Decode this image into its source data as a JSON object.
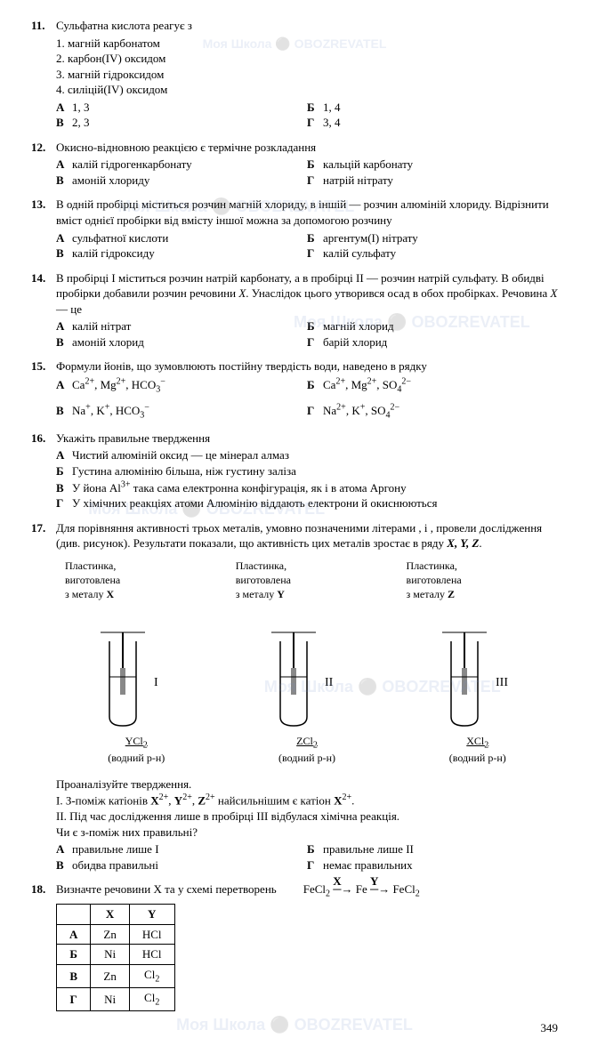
{
  "page_number": "349",
  "watermark_text": "Моя Школа ⚫ OBOZREVATEL",
  "questions": [
    {
      "num": "11.",
      "stem": "Сульфатна кислота реагує з",
      "list": [
        "1. магній карбонатом",
        "2. карбон(IV) оксидом",
        "3. магній гідроксидом",
        "4. силіцій(IV) оксидом"
      ],
      "answers_left": [
        [
          "А",
          "1, 3"
        ],
        [
          "В",
          "2, 3"
        ]
      ],
      "answers_right": [
        [
          "Б",
          "1, 4"
        ],
        [
          "Г",
          "3, 4"
        ]
      ]
    },
    {
      "num": "12.",
      "stem": "Окисно-відновною реакцією є термічне розкладання",
      "answers_left": [
        [
          "А",
          "калій гідрогенкарбонату"
        ],
        [
          "В",
          "амоній хлориду"
        ]
      ],
      "answers_right": [
        [
          "Б",
          "кальцій карбонату"
        ],
        [
          "Г",
          "натрій нітрату"
        ]
      ]
    },
    {
      "num": "13.",
      "stem": "В одній пробірці міститься розчин магній хлориду, в іншій — розчин алюміній хлориду. Відрізнити вміст однієї пробірки від вмісту іншої можна за допомогою розчину",
      "answers_left": [
        [
          "А",
          "сульфатної кислоти"
        ],
        [
          "В",
          "калій гідроксиду"
        ]
      ],
      "answers_right": [
        [
          "Б",
          "аргентум(I) нітрату"
        ],
        [
          "Г",
          "калій сульфату"
        ]
      ]
    },
    {
      "num": "14.",
      "stem_html": "В пробірці I міститься розчин натрій карбонату, а в пробірці II — розчин натрій сульфату. В обидві пробірки добавили розчин речовини <span class='italic'>X</span>. Унаслідок цього утворився осад в обох пробірках. Речовина <span class='italic'>X</span> — це",
      "answers_left": [
        [
          "А",
          "калій нітрат"
        ],
        [
          "В",
          "амоній хлорид"
        ]
      ],
      "answers_right": [
        [
          "Б",
          "магній хлорид"
        ],
        [
          "Г",
          "барій хлорид"
        ]
      ]
    },
    {
      "num": "15.",
      "stem": "Формули йонів, що зумовлюють постійну твердість води, наведено в рядку",
      "formula_ans": {
        "A": "Ca²⁺, Mg²⁺, HCO₃⁻",
        "B": "Ca²⁺, Mg²⁺, SO₄²⁻",
        "V": "Na⁺, K⁺, HCO₃⁻",
        "G": "Na²⁺, K⁺, SO₄²⁻"
      }
    },
    {
      "num": "16.",
      "stem": "Укажіть правильне твердження",
      "full_list": [
        [
          "А",
          "Чистий алюміній оксид — це мінерал алмаз"
        ],
        [
          "Б",
          "Густина алюмінію більша, ніж густину заліза"
        ],
        [
          "В",
          "У йона Al³⁺ така сама електронна конфігурація, як і в атома Аргону"
        ],
        [
          "Г",
          "У хімічних реакціях атоми Алюмінію віддають електрони й окиснюються"
        ]
      ]
    },
    {
      "num": "17.",
      "stem_html": "Для порівняння активності трьох металів, умовно позначеними літерами ,  і , провели дослідження (див. рисунок). Результати показали, що активність цих металів зростає в ряду <span class='bold italic'>X, Y, Z</span>.",
      "figs": [
        {
          "label_top": "Пластинка,\nвиготовлена\nз металу X",
          "roman": "I",
          "bottom": "YCl₂",
          "sub": "(водний р-н)"
        },
        {
          "label_top": "Пластинка,\nвиготовлена\nз металу Y",
          "roman": "II",
          "bottom": "ZCl₂",
          "sub": "(водний р-н)"
        },
        {
          "label_top": "Пластинка,\nвиготовлена\nз металу Z",
          "roman": "III",
          "bottom": "XCl₂",
          "sub": "(водний р-н)"
        }
      ],
      "analysis": {
        "lead": "Проаналізуйте твердження.",
        "l1": "I. З-поміж катіонів X²⁺, Y²⁺, Z²⁺ найсильнішим є катіон X²⁺.",
        "l2": "II. Під час дослідження лише в пробірці III відбулася хімічна реакція.",
        "q": "Чи є з-поміж них правильні?"
      },
      "answers_left": [
        [
          "А",
          "правильне лише I"
        ],
        [
          "В",
          "обидва правильні"
        ]
      ],
      "answers_right": [
        [
          "Б",
          "правильне лише II"
        ],
        [
          "Г",
          "немає правильних"
        ]
      ]
    },
    {
      "num": "18.",
      "stem": "Визначте речовини X та   у схемі перетворень",
      "scheme": "FeCl₂ →X→ Fe →Y→ FeCl₂",
      "table": {
        "head": [
          "",
          "X",
          "Y"
        ],
        "rows": [
          [
            "А",
            "Zn",
            "HCl"
          ],
          [
            "Б",
            "Ni",
            "HCl"
          ],
          [
            "В",
            "Zn",
            "Cl₂"
          ],
          [
            "Г",
            "Ni",
            "Cl₂"
          ]
        ]
      }
    }
  ]
}
